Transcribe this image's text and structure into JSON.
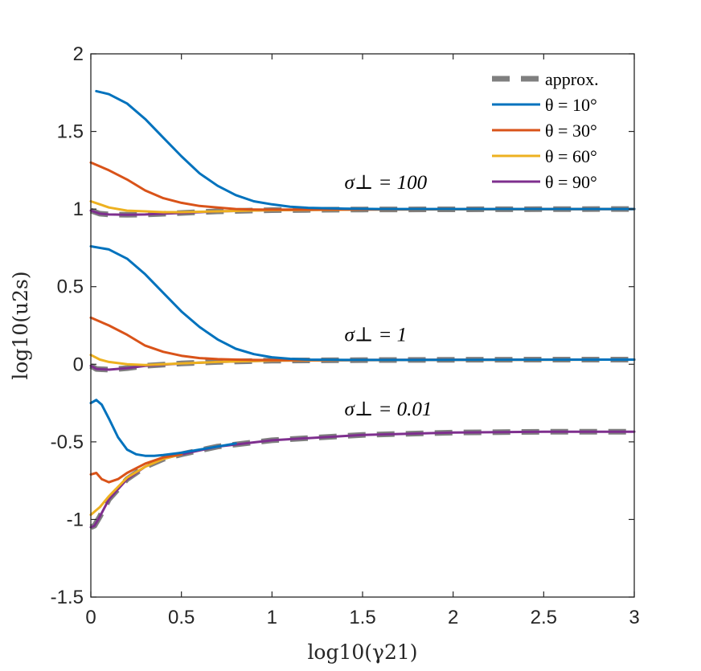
{
  "chart_data": {
    "type": "line",
    "title": "",
    "xlabel": "log10(γ21)",
    "ylabel": "log10(u2s)",
    "xlim": [
      0,
      3
    ],
    "ylim": [
      -1.5,
      2
    ],
    "xticks": [
      0,
      0.5,
      1,
      1.5,
      2,
      2.5,
      3
    ],
    "xtick_labels": [
      "0",
      "0.5",
      "1",
      "1.5",
      "2",
      "2.5",
      "3"
    ],
    "yticks": [
      -1.5,
      -1,
      -0.5,
      0,
      0.5,
      1,
      1.5,
      2
    ],
    "ytick_labels": [
      "-1.5",
      "-1",
      "-0.5",
      "0",
      "0.5",
      "1",
      "1.5",
      "2"
    ],
    "grid": false,
    "legend_position": "top-right",
    "colors": {
      "approx": "#7f7f7f",
      "theta10": "#0072bd",
      "theta30": "#d95319",
      "theta60": "#edb120",
      "theta90": "#7e2f8e"
    },
    "legend": [
      {
        "key": "approx",
        "label": "approx.",
        "style": "dashed"
      },
      {
        "key": "theta10",
        "label": "θ = 10°",
        "style": "solid"
      },
      {
        "key": "theta30",
        "label": "θ = 30°",
        "style": "solid"
      },
      {
        "key": "theta60",
        "label": "θ = 60°",
        "style": "solid"
      },
      {
        "key": "theta90",
        "label": "θ = 90°",
        "style": "solid"
      }
    ],
    "groups": [
      {
        "annotation": "σ⊥ = 100",
        "annotation_at": [
          1.4,
          1.13
        ],
        "series": [
          {
            "key": "approx",
            "x": [
              0,
              0.05,
              0.1,
              0.2,
              0.3,
              0.5,
              0.7,
              1.0,
              1.5,
              2.0,
              2.5,
              3.0
            ],
            "y": [
              0.99,
              0.97,
              0.965,
              0.963,
              0.965,
              0.975,
              0.985,
              0.993,
              0.997,
              0.998,
              0.999,
              1.0
            ]
          },
          {
            "key": "theta90",
            "x": [
              0,
              0.05,
              0.1,
              0.2,
              0.3,
              0.5,
              0.7,
              1.0,
              1.5,
              2.0,
              2.5,
              3.0
            ],
            "y": [
              0.99,
              0.97,
              0.965,
              0.963,
              0.965,
              0.975,
              0.985,
              0.993,
              0.997,
              0.998,
              0.999,
              1.0
            ]
          },
          {
            "key": "theta60",
            "x": [
              0,
              0.05,
              0.1,
              0.2,
              0.3,
              0.4,
              0.5,
              0.7,
              1.0,
              1.5,
              3.0
            ],
            "y": [
              1.05,
              1.03,
              1.01,
              0.99,
              0.985,
              0.98,
              0.98,
              0.985,
              0.993,
              0.997,
              1.0
            ]
          },
          {
            "key": "theta30",
            "x": [
              0,
              0.1,
              0.2,
              0.3,
              0.4,
              0.5,
              0.6,
              0.7,
              0.8,
              0.9,
              1.0,
              1.2,
              1.5,
              3.0
            ],
            "y": [
              1.3,
              1.25,
              1.19,
              1.12,
              1.07,
              1.04,
              1.02,
              1.01,
              1.0,
              0.997,
              0.996,
              0.997,
              0.998,
              1.0
            ]
          },
          {
            "key": "theta10",
            "x": [
              0.03,
              0.1,
              0.2,
              0.3,
              0.4,
              0.5,
              0.6,
              0.7,
              0.8,
              0.9,
              1.0,
              1.1,
              1.2,
              1.4,
              1.6,
              2.0,
              3.0
            ],
            "y": [
              1.76,
              1.74,
              1.68,
              1.58,
              1.46,
              1.34,
              1.23,
              1.15,
              1.09,
              1.05,
              1.03,
              1.015,
              1.008,
              1.003,
              1.0,
              1.0,
              1.0
            ]
          }
        ]
      },
      {
        "annotation": "σ⊥ = 1",
        "annotation_at": [
          1.4,
          0.15
        ],
        "series": [
          {
            "key": "approx",
            "x": [
              0,
              0.03,
              0.1,
              0.2,
              0.3,
              0.5,
              0.7,
              1.0,
              1.5,
              2.0,
              2.5,
              3.0
            ],
            "y": [
              -0.01,
              -0.03,
              -0.035,
              -0.025,
              -0.01,
              0.005,
              0.015,
              0.023,
              0.027,
              0.029,
              0.03,
              0.03
            ]
          },
          {
            "key": "theta90",
            "x": [
              0,
              0.03,
              0.1,
              0.2,
              0.3,
              0.5,
              0.7,
              1.0,
              1.5,
              2.0,
              2.5,
              3.0
            ],
            "y": [
              -0.01,
              -0.03,
              -0.035,
              -0.025,
              -0.01,
              0.005,
              0.015,
              0.023,
              0.027,
              0.029,
              0.03,
              0.03
            ]
          },
          {
            "key": "theta60",
            "x": [
              0,
              0.05,
              0.1,
              0.2,
              0.3,
              0.4,
              0.5,
              0.7,
              1.0,
              1.5,
              3.0
            ],
            "y": [
              0.06,
              0.03,
              0.015,
              0.0,
              -0.005,
              0.0,
              0.005,
              0.015,
              0.023,
              0.027,
              0.03
            ]
          },
          {
            "key": "theta30",
            "x": [
              0,
              0.1,
              0.2,
              0.3,
              0.4,
              0.5,
              0.6,
              0.7,
              0.8,
              0.9,
              1.0,
              1.2,
              1.5,
              3.0
            ],
            "y": [
              0.3,
              0.25,
              0.19,
              0.12,
              0.08,
              0.055,
              0.04,
              0.033,
              0.03,
              0.028,
              0.027,
              0.027,
              0.028,
              0.03
            ]
          },
          {
            "key": "theta10",
            "x": [
              0.0,
              0.1,
              0.2,
              0.3,
              0.4,
              0.5,
              0.6,
              0.7,
              0.8,
              0.9,
              1.0,
              1.1,
              1.2,
              1.4,
              1.6,
              2.0,
              3.0
            ],
            "y": [
              0.76,
              0.74,
              0.68,
              0.58,
              0.46,
              0.34,
              0.24,
              0.16,
              0.1,
              0.065,
              0.045,
              0.035,
              0.03,
              0.028,
              0.028,
              0.029,
              0.03
            ]
          }
        ]
      },
      {
        "annotation": "σ⊥ = 0.01",
        "annotation_at": [
          1.4,
          -0.33
        ],
        "series": [
          {
            "key": "approx",
            "x": [
              0,
              0.02,
              0.05,
              0.1,
              0.2,
              0.3,
              0.4,
              0.5,
              0.7,
              1.0,
              1.5,
              2.0,
              2.5,
              3.0
            ],
            "y": [
              -1.05,
              -1.04,
              -0.98,
              -0.87,
              -0.74,
              -0.66,
              -0.61,
              -0.58,
              -0.53,
              -0.49,
              -0.455,
              -0.44,
              -0.435,
              -0.435
            ]
          },
          {
            "key": "theta90",
            "x": [
              0,
              0.02,
              0.05,
              0.1,
              0.2,
              0.3,
              0.4,
              0.5,
              0.7,
              1.0,
              1.5,
              2.0,
              2.5,
              3.0
            ],
            "y": [
              -1.05,
              -1.04,
              -0.98,
              -0.87,
              -0.74,
              -0.66,
              -0.61,
              -0.58,
              -0.53,
              -0.49,
              -0.455,
              -0.44,
              -0.435,
              -0.435
            ]
          },
          {
            "key": "theta60",
            "x": [
              0,
              0.05,
              0.1,
              0.2,
              0.3,
              0.4,
              0.5
            ],
            "y": [
              -0.97,
              -0.92,
              -0.85,
              -0.73,
              -0.66,
              -0.61,
              -0.58
            ]
          },
          {
            "key": "theta30",
            "x": [
              0,
              0.03,
              0.06,
              0.1,
              0.15,
              0.2,
              0.3,
              0.4,
              0.5
            ],
            "y": [
              -0.71,
              -0.7,
              -0.74,
              -0.76,
              -0.74,
              -0.7,
              -0.64,
              -0.6,
              -0.58
            ]
          },
          {
            "key": "theta10",
            "x": [
              0.0,
              0.03,
              0.06,
              0.1,
              0.15,
              0.2,
              0.25,
              0.3,
              0.35,
              0.4,
              0.5,
              0.6,
              0.8
            ],
            "y": [
              -0.25,
              -0.23,
              -0.26,
              -0.35,
              -0.47,
              -0.55,
              -0.58,
              -0.59,
              -0.59,
              -0.585,
              -0.57,
              -0.55,
              -0.51
            ]
          }
        ]
      }
    ]
  }
}
